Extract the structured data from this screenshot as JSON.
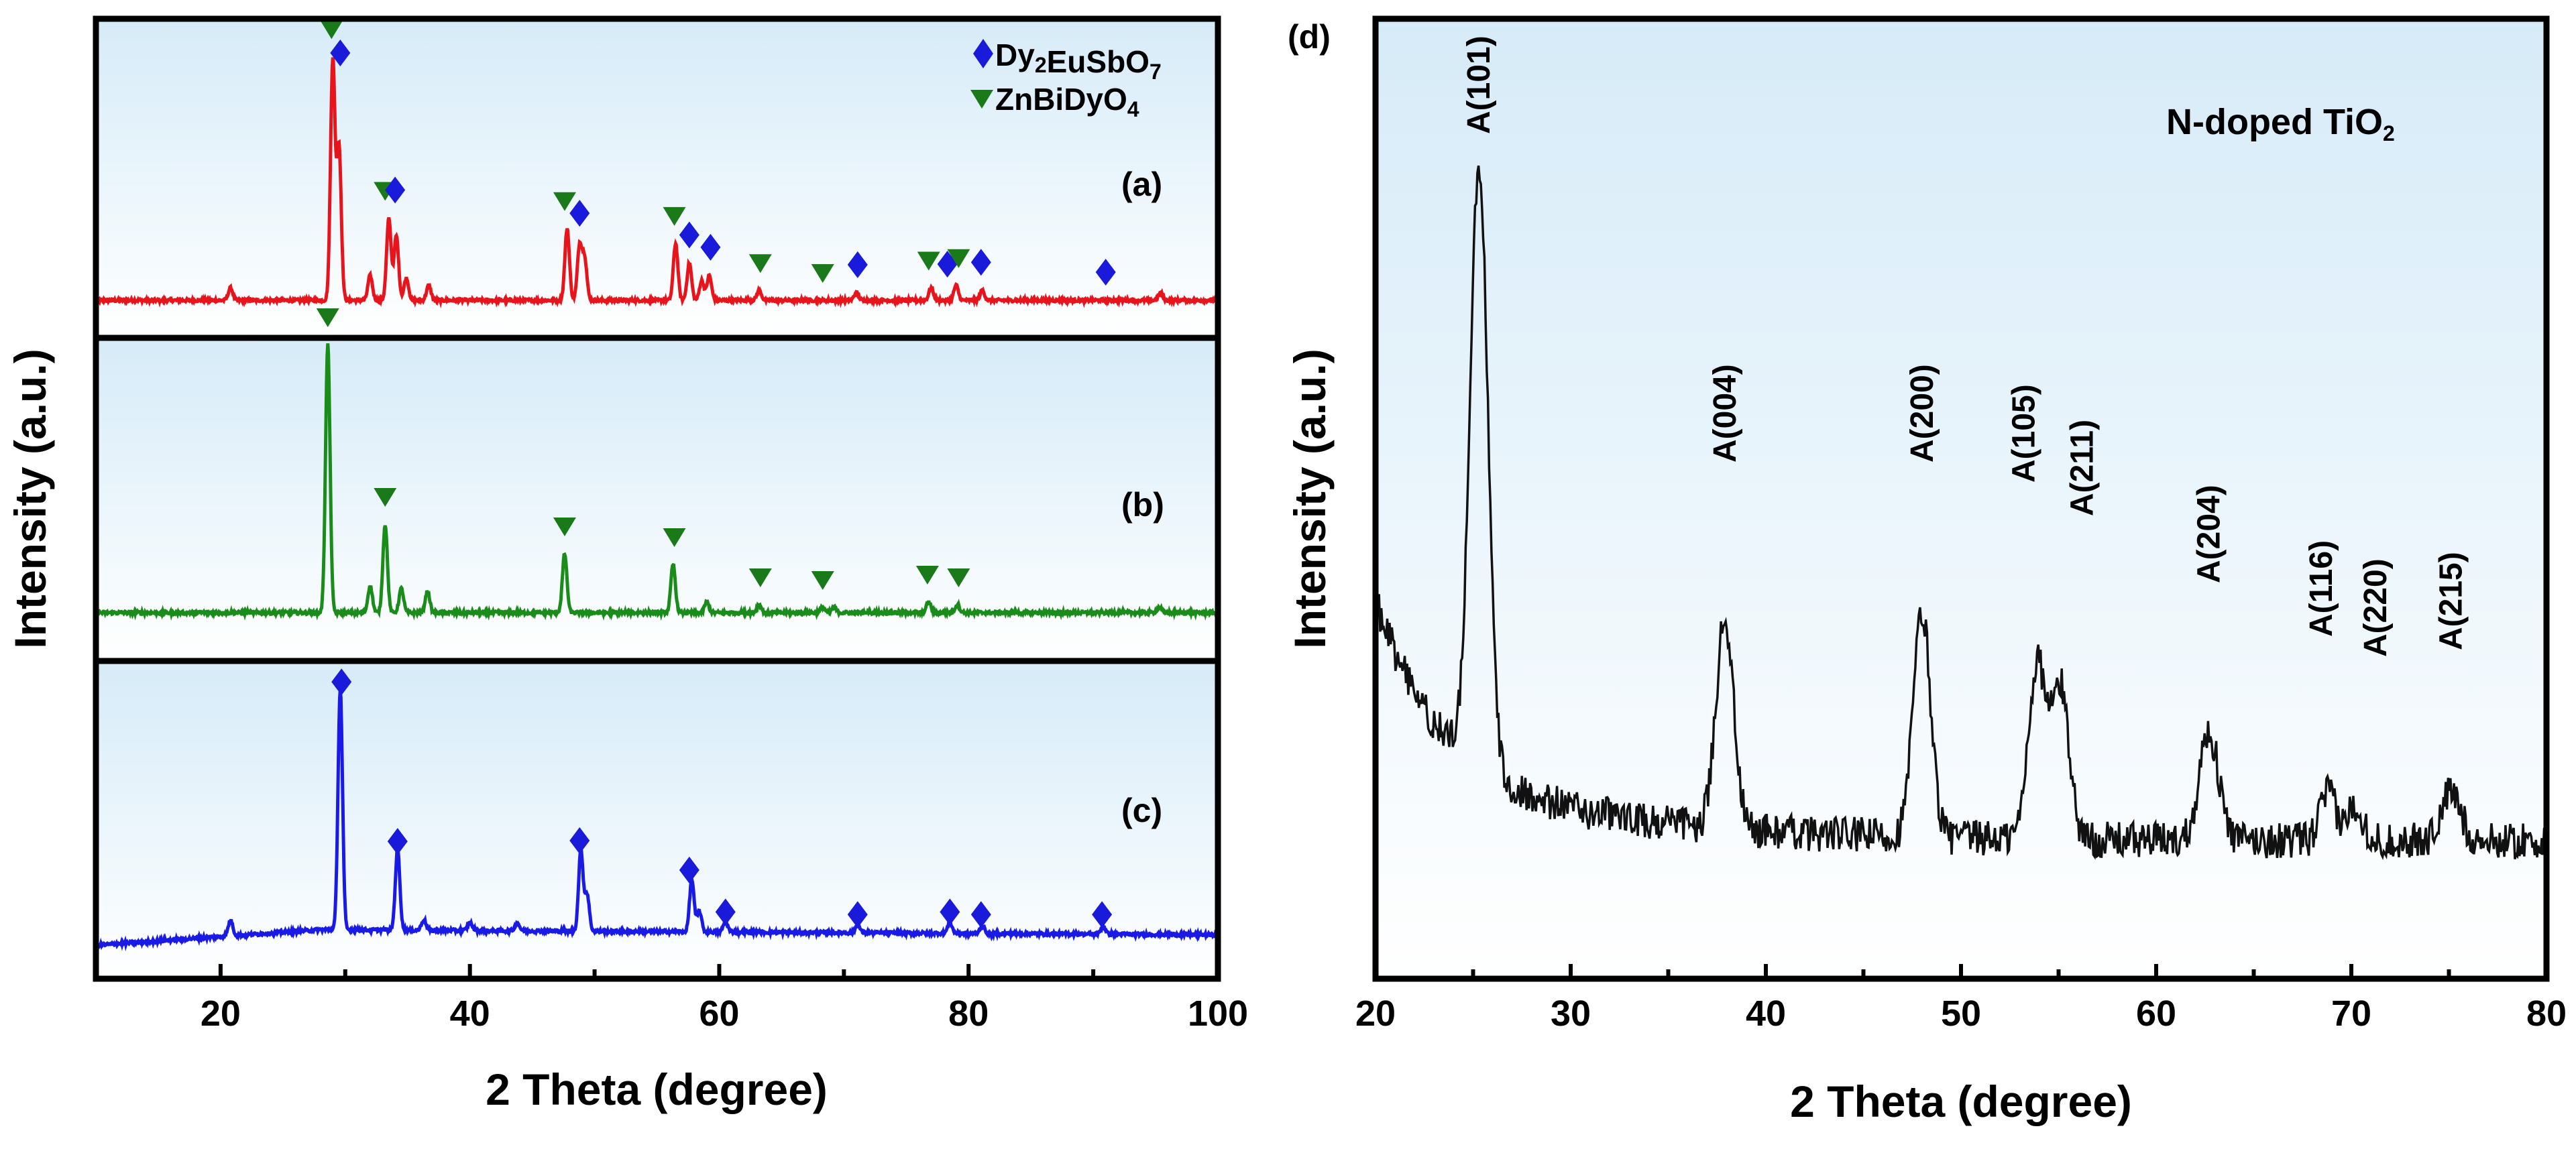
{
  "chart_data": [
    {
      "type": "line",
      "subtype": "stacked XRD patterns",
      "ylabel": "Intensity (a.u.)",
      "xlabel": "2 Theta (degree)",
      "xlim": [
        10,
        100
      ],
      "xticks": [
        20,
        40,
        60,
        80,
        100
      ],
      "legend": [
        {
          "marker": "diamond",
          "color": "#1a1adb",
          "label_main": "Dy",
          "label_parts": [
            [
              "Dy",
              ""
            ],
            [
              "2",
              "sub"
            ],
            [
              "EuSbO",
              ""
            ],
            [
              "7",
              "sub"
            ]
          ]
        },
        {
          "marker": "triangle-down",
          "color": "#1a7a1a",
          "label_parts": [
            [
              "ZnBiDyO",
              ""
            ],
            [
              "4",
              "sub"
            ]
          ]
        }
      ],
      "legend_text_1": "Dy2EuSbO7",
      "legend_text_2": "ZnBiDyO4",
      "series": [
        {
          "name": "(a)",
          "color": "#e8141c",
          "peaks": [
            [
              20.8,
              0.05
            ],
            [
              29.0,
              0.97
            ],
            [
              29.5,
              0.62
            ],
            [
              32.0,
              0.1
            ],
            [
              33.5,
              0.33
            ],
            [
              34.1,
              0.26
            ],
            [
              34.9,
              0.09
            ],
            [
              36.7,
              0.06
            ],
            [
              47.8,
              0.29
            ],
            [
              48.8,
              0.22
            ],
            [
              49.2,
              0.17
            ],
            [
              56.5,
              0.23
            ],
            [
              57.6,
              0.15
            ],
            [
              58.6,
              0.08
            ],
            [
              59.2,
              0.1
            ],
            [
              63.2,
              0.04
            ],
            [
              71.0,
              0.03
            ],
            [
              77.0,
              0.05
            ],
            [
              79.0,
              0.06
            ],
            [
              81.1,
              0.04
            ],
            [
              95.4,
              0.03
            ]
          ],
          "baseline": 0.0,
          "markers": [
            {
              "type": "triangle",
              "x": 28.9
            },
            {
              "type": "diamond",
              "x": 29.6
            },
            {
              "type": "triangle",
              "x": 33.2
            },
            {
              "type": "diamond",
              "x": 34.0
            },
            {
              "type": "triangle",
              "x": 47.6
            },
            {
              "type": "diamond",
              "x": 48.8
            },
            {
              "type": "triangle",
              "x": 56.4
            },
            {
              "type": "diamond",
              "x": 57.6
            },
            {
              "type": "diamond",
              "x": 59.3
            },
            {
              "type": "triangle",
              "x": 63.3
            },
            {
              "type": "triangle",
              "x": 68.3
            },
            {
              "type": "diamond",
              "x": 71.1
            },
            {
              "type": "triangle",
              "x": 76.8
            },
            {
              "type": "diamond",
              "x": 78.3
            },
            {
              "type": "triangle",
              "x": 79.2
            },
            {
              "type": "diamond",
              "x": 81.0
            },
            {
              "type": "diamond",
              "x": 91.0
            }
          ]
        },
        {
          "name": "(b)",
          "color": "#1a8c1a",
          "peaks": [
            [
              28.6,
              1.0
            ],
            [
              32.0,
              0.1
            ],
            [
              33.2,
              0.33
            ],
            [
              34.5,
              0.09
            ],
            [
              36.6,
              0.08
            ],
            [
              47.6,
              0.22
            ],
            [
              56.3,
              0.18
            ],
            [
              59.0,
              0.04
            ],
            [
              63.2,
              0.03
            ],
            [
              68.3,
              0.02
            ],
            [
              69.2,
              0.02
            ],
            [
              76.8,
              0.04
            ],
            [
              79.1,
              0.03
            ],
            [
              95.3,
              0.02
            ]
          ],
          "baseline": 0.0,
          "markers": [
            {
              "type": "triangle",
              "x": 28.6
            },
            {
              "type": "triangle",
              "x": 33.2
            },
            {
              "type": "triangle",
              "x": 47.6
            },
            {
              "type": "triangle",
              "x": 56.4
            },
            {
              "type": "triangle",
              "x": 63.3
            },
            {
              "type": "triangle",
              "x": 68.3
            },
            {
              "type": "triangle",
              "x": 76.7
            },
            {
              "type": "triangle",
              "x": 79.2
            }
          ]
        },
        {
          "name": "(c)",
          "color": "#1a1ae6",
          "peaks": [
            [
              20.8,
              0.06
            ],
            [
              29.6,
              0.92
            ],
            [
              34.2,
              0.31
            ],
            [
              36.3,
              0.04
            ],
            [
              40.0,
              0.03
            ],
            [
              43.8,
              0.03
            ],
            [
              48.9,
              0.31
            ],
            [
              49.4,
              0.14
            ],
            [
              57.8,
              0.2
            ],
            [
              58.4,
              0.08
            ],
            [
              60.5,
              0.04
            ],
            [
              71.1,
              0.03
            ],
            [
              78.5,
              0.04
            ],
            [
              81.1,
              0.03
            ],
            [
              90.8,
              0.03
            ]
          ],
          "baseline": "rising-then-flat",
          "markers": [
            {
              "type": "diamond",
              "x": 29.7
            },
            {
              "type": "diamond",
              "x": 34.2
            },
            {
              "type": "diamond",
              "x": 48.8
            },
            {
              "type": "diamond",
              "x": 57.6
            },
            {
              "type": "diamond",
              "x": 60.5
            },
            {
              "type": "diamond",
              "x": 71.1
            },
            {
              "type": "diamond",
              "x": 78.5
            },
            {
              "type": "diamond",
              "x": 81.0
            },
            {
              "type": "diamond",
              "x": 90.7
            }
          ]
        }
      ]
    },
    {
      "type": "line",
      "panel": "(d)",
      "title": "N-doped TiO2",
      "title_parts": [
        [
          "N-doped TiO",
          ""
        ],
        [
          "2",
          "sub"
        ]
      ],
      "xlabel": "2 Theta (degree)",
      "ylabel": "Intensity (a.u.)",
      "xlim": [
        20,
        80
      ],
      "xticks": [
        20,
        30,
        40,
        50,
        60,
        70,
        80
      ],
      "series": [
        {
          "name": "N-doped TiO2",
          "color": "#111111",
          "peaks": [
            [
              25.3,
              1.0
            ],
            [
              37.9,
              0.35
            ],
            [
              48.0,
              0.37
            ],
            [
              53.9,
              0.29
            ],
            [
              55.1,
              0.25
            ],
            [
              62.7,
              0.18
            ],
            [
              68.8,
              0.08
            ],
            [
              70.2,
              0.06
            ],
            [
              75.1,
              0.08
            ]
          ]
        }
      ],
      "annotations": [
        {
          "text": "A(101)",
          "x": 25.3
        },
        {
          "text": "A(004)",
          "x": 37.9
        },
        {
          "text": "A(200)",
          "x": 48.0
        },
        {
          "text": "A(105)",
          "x": 53.9
        },
        {
          "text": "A(211)",
          "x": 55.1
        },
        {
          "text": "A(204)",
          "x": 62.7
        },
        {
          "text": "A(116)",
          "x": 68.8
        },
        {
          "text": "A(220)",
          "x": 70.2
        },
        {
          "text": "A(215)",
          "x": 75.1
        }
      ]
    }
  ]
}
